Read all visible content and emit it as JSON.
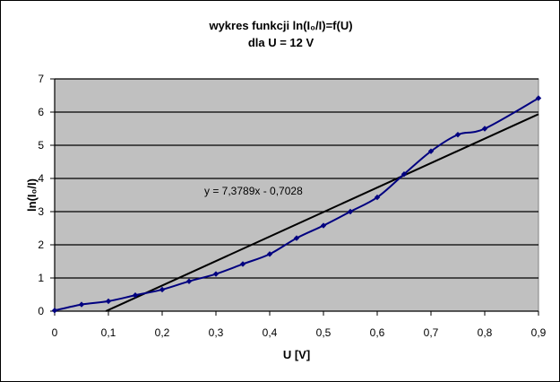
{
  "chart_data": {
    "type": "line",
    "title_line1": "wykres funkcji ln(I₀/I)=f(U)",
    "title_line2": "dla U = 12 V",
    "xlabel": "U [V]",
    "ylabel": "ln(I₀/I)",
    "xlim": [
      0,
      0.9
    ],
    "ylim": [
      0,
      7
    ],
    "x_ticks": [
      0,
      0.1,
      0.2,
      0.3,
      0.4,
      0.5,
      0.6,
      0.7,
      0.8,
      0.9
    ],
    "x_tick_labels": [
      "0",
      "0,1",
      "0,2",
      "0,3",
      "0,4",
      "0,5",
      "0,6",
      "0,7",
      "0,8",
      "0,9"
    ],
    "y_ticks": [
      0,
      1,
      2,
      3,
      4,
      5,
      6,
      7
    ],
    "y_tick_labels": [
      "0",
      "1",
      "2",
      "3",
      "4",
      "5",
      "6",
      "7"
    ],
    "grid": "horizontal",
    "plot_background": "#c0c0c0",
    "series": [
      {
        "color": "#000080",
        "x": [
          0,
          0.05,
          0.1,
          0.15,
          0.2,
          0.25,
          0.3,
          0.35,
          0.4,
          0.45,
          0.5,
          0.55,
          0.6,
          0.65,
          0.7,
          0.75,
          0.8,
          0.9
        ],
        "y": [
          0.02,
          0.2,
          0.3,
          0.48,
          0.65,
          0.9,
          1.12,
          1.42,
          1.72,
          2.2,
          2.58,
          3.0,
          3.43,
          4.13,
          4.82,
          5.32,
          5.5,
          6.42
        ]
      }
    ],
    "trendline": {
      "color": "#000000",
      "slope": 7.3789,
      "intercept": -0.7028,
      "equation": "y = 7,3789x - 0,7028"
    }
  }
}
